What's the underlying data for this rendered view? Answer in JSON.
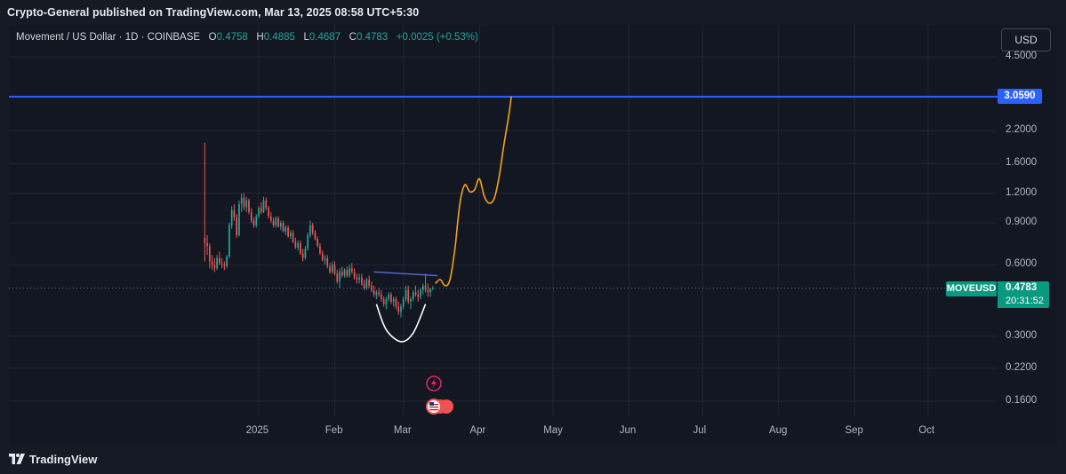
{
  "header": {
    "published_text": "Crypto-General published on TradingView.com, Mar 13, 2025 08:58 UTC+5:30"
  },
  "legend": {
    "symbol_text": "Movement / US Dollar · 1D · COINBASE",
    "o_label": "O",
    "o_value": "0.4758",
    "h_label": "H",
    "h_value": "0.4885",
    "l_label": "L",
    "l_value": "0.4687",
    "c_label": "C",
    "c_value": "0.4783",
    "change": "+0.0025 (+0.53%)"
  },
  "currency_button": "USD",
  "price_axis": {
    "ticks": [
      "4.5000",
      "2.2000",
      "1.6000",
      "1.2000",
      "0.9000",
      "0.6000",
      "0.3000",
      "0.2200",
      "0.1600"
    ]
  },
  "time_axis": {
    "ticks": [
      "2025",
      "Feb",
      "Mar",
      "Apr",
      "May",
      "Jun",
      "Jul",
      "Aug",
      "Sep",
      "Oct"
    ]
  },
  "level_line": {
    "label": "3.0590",
    "color": "#2962ff"
  },
  "last_price": {
    "symbol": "MOVEUSD",
    "price": "0.4783",
    "countdown": "20:31:52",
    "color": "#089981"
  },
  "colors": {
    "up": "#26a69a",
    "down": "#ef5350",
    "projection": "#f7a21b",
    "trendline": "#5b6bd8",
    "background": "#131722"
  },
  "footer": {
    "brand": "TradingView"
  },
  "chart_data": {
    "type": "candlestick",
    "symbol": "MOVEUSD",
    "exchange": "COINBASE",
    "interval": "1D",
    "scale": "log",
    "ylim": [
      0.14,
      5.2
    ],
    "x_range": [
      "2024-12-07",
      "2025-10-31"
    ],
    "grid": true,
    "horizontal_level": 3.059,
    "ohlc": [
      [
        "2024-12-10",
        0.78,
        1.96,
        0.62,
        0.74
      ],
      [
        "2024-12-11",
        0.74,
        0.8,
        0.66,
        0.72
      ],
      [
        "2024-12-12",
        0.72,
        0.74,
        0.58,
        0.62
      ],
      [
        "2024-12-13",
        0.62,
        0.66,
        0.57,
        0.6
      ],
      [
        "2024-12-14",
        0.6,
        0.64,
        0.56,
        0.58
      ],
      [
        "2024-12-15",
        0.58,
        0.66,
        0.57,
        0.64
      ],
      [
        "2024-12-16",
        0.64,
        0.68,
        0.6,
        0.61
      ],
      [
        "2024-12-17",
        0.61,
        0.64,
        0.58,
        0.6
      ],
      [
        "2024-12-18",
        0.6,
        0.62,
        0.57,
        0.59
      ],
      [
        "2024-12-19",
        0.59,
        0.66,
        0.58,
        0.65
      ],
      [
        "2024-12-20",
        0.65,
        0.9,
        0.64,
        0.88
      ],
      [
        "2024-12-21",
        0.88,
        1.06,
        0.85,
        1.02
      ],
      [
        "2024-12-22",
        1.02,
        1.08,
        0.92,
        0.95
      ],
      [
        "2024-12-23",
        0.95,
        0.98,
        0.78,
        0.8
      ],
      [
        "2024-12-24",
        0.8,
        1.12,
        0.79,
        1.08
      ],
      [
        "2024-12-25",
        1.08,
        1.2,
        1.0,
        1.15
      ],
      [
        "2024-12-26",
        1.15,
        1.2,
        1.02,
        1.05
      ],
      [
        "2024-12-27",
        1.05,
        1.16,
        1.0,
        1.12
      ],
      [
        "2024-12-28",
        1.12,
        1.14,
        0.98,
        1.0
      ],
      [
        "2024-12-29",
        1.0,
        1.04,
        0.9,
        0.92
      ],
      [
        "2024-12-30",
        0.92,
        0.95,
        0.86,
        0.88
      ],
      [
        "2024-12-31",
        0.88,
        0.98,
        0.86,
        0.96
      ],
      [
        "2025-01-01",
        0.96,
        1.06,
        0.94,
        1.04
      ],
      [
        "2025-01-02",
        1.04,
        1.1,
        0.98,
        1.0
      ],
      [
        "2025-01-03",
        1.0,
        1.16,
        0.99,
        1.12
      ],
      [
        "2025-01-04",
        1.12,
        1.15,
        1.02,
        1.04
      ],
      [
        "2025-01-05",
        1.04,
        1.06,
        0.94,
        0.96
      ],
      [
        "2025-01-06",
        0.96,
        1.0,
        0.9,
        0.92
      ],
      [
        "2025-01-07",
        0.92,
        0.95,
        0.86,
        0.88
      ],
      [
        "2025-01-08",
        0.88,
        0.96,
        0.86,
        0.94
      ],
      [
        "2025-01-09",
        0.94,
        0.96,
        0.86,
        0.87
      ],
      [
        "2025-01-10",
        0.87,
        0.92,
        0.84,
        0.9
      ],
      [
        "2025-01-11",
        0.9,
        0.92,
        0.82,
        0.83
      ],
      [
        "2025-01-12",
        0.83,
        0.88,
        0.8,
        0.86
      ],
      [
        "2025-01-13",
        0.86,
        0.88,
        0.78,
        0.79
      ],
      [
        "2025-01-14",
        0.79,
        0.84,
        0.77,
        0.82
      ],
      [
        "2025-01-15",
        0.82,
        0.84,
        0.74,
        0.75
      ],
      [
        "2025-01-16",
        0.75,
        0.78,
        0.7,
        0.71
      ],
      [
        "2025-01-17",
        0.71,
        0.76,
        0.69,
        0.74
      ],
      [
        "2025-01-18",
        0.74,
        0.76,
        0.66,
        0.67
      ],
      [
        "2025-01-19",
        0.67,
        0.7,
        0.62,
        0.64
      ],
      [
        "2025-01-20",
        0.64,
        0.72,
        0.63,
        0.7
      ],
      [
        "2025-01-21",
        0.7,
        0.82,
        0.69,
        0.8
      ],
      [
        "2025-01-22",
        0.8,
        0.92,
        0.78,
        0.88
      ],
      [
        "2025-01-23",
        0.88,
        0.9,
        0.8,
        0.82
      ],
      [
        "2025-01-24",
        0.82,
        0.84,
        0.76,
        0.77
      ],
      [
        "2025-01-25",
        0.77,
        0.79,
        0.71,
        0.72
      ],
      [
        "2025-01-26",
        0.72,
        0.74,
        0.66,
        0.67
      ],
      [
        "2025-01-27",
        0.67,
        0.69,
        0.62,
        0.63
      ],
      [
        "2025-01-28",
        0.63,
        0.66,
        0.6,
        0.64
      ],
      [
        "2025-01-29",
        0.64,
        0.66,
        0.58,
        0.59
      ],
      [
        "2025-01-30",
        0.59,
        0.61,
        0.55,
        0.56
      ],
      [
        "2025-01-31",
        0.56,
        0.62,
        0.55,
        0.6
      ],
      [
        "2025-02-01",
        0.6,
        0.62,
        0.54,
        0.55
      ],
      [
        "2025-02-02",
        0.55,
        0.57,
        0.5,
        0.51
      ],
      [
        "2025-02-03",
        0.51,
        0.58,
        0.48,
        0.56
      ],
      [
        "2025-02-04",
        0.56,
        0.59,
        0.53,
        0.54
      ],
      [
        "2025-02-05",
        0.54,
        0.58,
        0.53,
        0.57
      ],
      [
        "2025-02-06",
        0.57,
        0.59,
        0.53,
        0.54
      ],
      [
        "2025-02-07",
        0.54,
        0.6,
        0.53,
        0.58
      ],
      [
        "2025-02-08",
        0.58,
        0.61,
        0.55,
        0.56
      ],
      [
        "2025-02-09",
        0.56,
        0.58,
        0.52,
        0.53
      ],
      [
        "2025-02-10",
        0.53,
        0.55,
        0.5,
        0.52
      ],
      [
        "2025-02-11",
        0.52,
        0.55,
        0.5,
        0.53
      ],
      [
        "2025-02-12",
        0.53,
        0.55,
        0.49,
        0.5
      ],
      [
        "2025-02-13",
        0.5,
        0.52,
        0.47,
        0.48
      ],
      [
        "2025-02-14",
        0.48,
        0.53,
        0.47,
        0.52
      ],
      [
        "2025-02-15",
        0.52,
        0.54,
        0.48,
        0.49
      ],
      [
        "2025-02-16",
        0.49,
        0.51,
        0.46,
        0.47
      ],
      [
        "2025-02-17",
        0.47,
        0.49,
        0.44,
        0.45
      ],
      [
        "2025-02-18",
        0.45,
        0.47,
        0.43,
        0.46
      ],
      [
        "2025-02-19",
        0.46,
        0.48,
        0.44,
        0.45
      ],
      [
        "2025-02-20",
        0.45,
        0.47,
        0.42,
        0.43
      ],
      [
        "2025-02-21",
        0.43,
        0.44,
        0.4,
        0.41
      ],
      [
        "2025-02-22",
        0.41,
        0.44,
        0.39,
        0.43
      ],
      [
        "2025-02-23",
        0.43,
        0.46,
        0.42,
        0.45
      ],
      [
        "2025-02-24",
        0.45,
        0.46,
        0.41,
        0.42
      ],
      [
        "2025-02-25",
        0.42,
        0.44,
        0.4,
        0.43
      ],
      [
        "2025-02-26",
        0.43,
        0.44,
        0.39,
        0.4
      ],
      [
        "2025-02-27",
        0.4,
        0.42,
        0.37,
        0.38
      ],
      [
        "2025-02-28",
        0.38,
        0.41,
        0.36,
        0.4
      ],
      [
        "2025-03-01",
        0.4,
        0.44,
        0.39,
        0.43
      ],
      [
        "2025-03-02",
        0.43,
        0.49,
        0.42,
        0.47
      ],
      [
        "2025-03-03",
        0.47,
        0.49,
        0.41,
        0.42
      ],
      [
        "2025-03-04",
        0.42,
        0.44,
        0.39,
        0.43
      ],
      [
        "2025-03-05",
        0.43,
        0.47,
        0.42,
        0.46
      ],
      [
        "2025-03-06",
        0.46,
        0.49,
        0.44,
        0.45
      ],
      [
        "2025-03-07",
        0.45,
        0.47,
        0.42,
        0.44
      ],
      [
        "2025-03-08",
        0.44,
        0.48,
        0.43,
        0.47
      ],
      [
        "2025-03-09",
        0.47,
        0.5,
        0.45,
        0.49
      ],
      [
        "2025-03-10",
        0.49,
        0.55,
        0.46,
        0.47
      ],
      [
        "2025-03-11",
        0.47,
        0.5,
        0.44,
        0.46
      ],
      [
        "2025-03-12",
        0.46,
        0.48,
        0.44,
        0.4758
      ],
      [
        "2025-03-13",
        0.4758,
        0.4885,
        0.4687,
        0.4783
      ]
    ],
    "projection_path": [
      [
        "2025-03-14",
        0.5
      ],
      [
        "2025-03-16",
        0.52
      ],
      [
        "2025-03-18",
        0.49
      ],
      [
        "2025-03-20",
        0.52
      ],
      [
        "2025-03-22",
        0.7
      ],
      [
        "2025-03-24",
        1.08
      ],
      [
        "2025-03-26",
        1.3
      ],
      [
        "2025-03-28",
        1.22
      ],
      [
        "2025-03-30",
        1.24
      ],
      [
        "2025-04-01",
        1.38
      ],
      [
        "2025-04-03",
        1.16
      ],
      [
        "2025-04-05",
        1.09
      ],
      [
        "2025-04-07",
        1.14
      ],
      [
        "2025-04-09",
        1.4
      ],
      [
        "2025-04-11",
        1.92
      ],
      [
        "2025-04-13",
        2.56
      ],
      [
        "2025-04-14",
        3.06
      ]
    ],
    "trendline": [
      [
        "2025-02-17",
        0.56
      ],
      [
        "2025-03-15",
        0.54
      ]
    ],
    "arc_drawing": [
      [
        "2025-02-18",
        0.41
      ],
      [
        "2025-02-22",
        0.32
      ],
      [
        "2025-02-28",
        0.285
      ],
      [
        "2025-03-05",
        0.31
      ],
      [
        "2025-03-10",
        0.41
      ]
    ]
  }
}
